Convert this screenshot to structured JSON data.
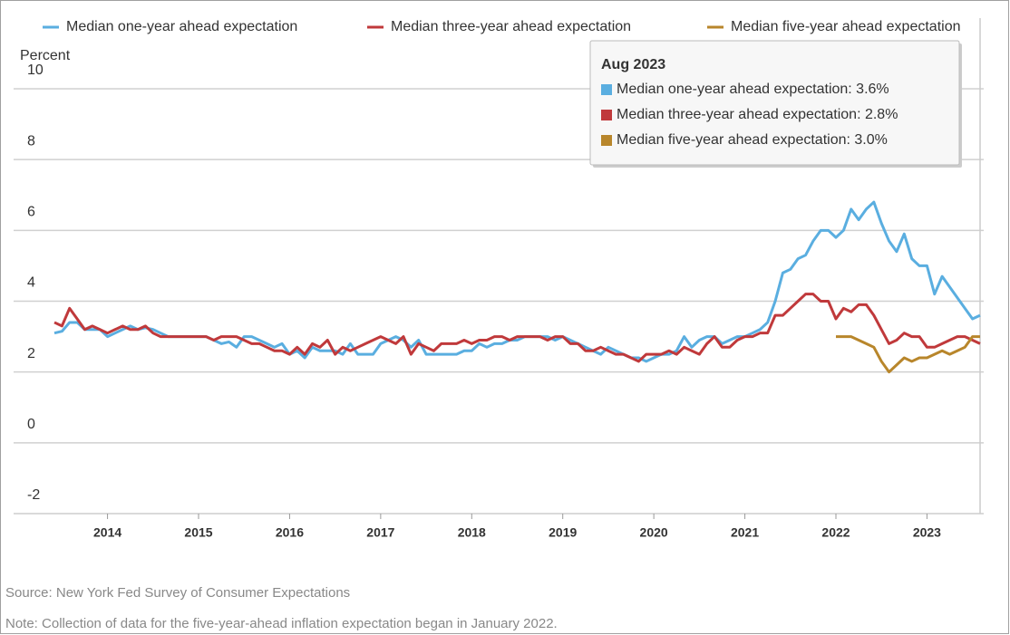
{
  "chart_data": {
    "type": "line",
    "y_label": "Percent",
    "x": [
      "Jun 2013",
      "Jul 2013",
      "Aug 2013",
      "Sep 2013",
      "Oct 2013",
      "Nov 2013",
      "Dec 2013",
      "Jan 2014",
      "Feb 2014",
      "Mar 2014",
      "Apr 2014",
      "May 2014",
      "Jun 2014",
      "Jul 2014",
      "Aug 2014",
      "Sep 2014",
      "Oct 2014",
      "Nov 2014",
      "Dec 2014",
      "Jan 2015",
      "Feb 2015",
      "Mar 2015",
      "Apr 2015",
      "May 2015",
      "Jun 2015",
      "Jul 2015",
      "Aug 2015",
      "Sep 2015",
      "Oct 2015",
      "Nov 2015",
      "Dec 2015",
      "Jan 2016",
      "Feb 2016",
      "Mar 2016",
      "Apr 2016",
      "May 2016",
      "Jun 2016",
      "Jul 2016",
      "Aug 2016",
      "Sep 2016",
      "Oct 2016",
      "Nov 2016",
      "Dec 2016",
      "Jan 2017",
      "Feb 2017",
      "Mar 2017",
      "Apr 2017",
      "May 2017",
      "Jun 2017",
      "Jul 2017",
      "Aug 2017",
      "Sep 2017",
      "Oct 2017",
      "Nov 2017",
      "Dec 2017",
      "Jan 2018",
      "Feb 2018",
      "Mar 2018",
      "Apr 2018",
      "May 2018",
      "Jun 2018",
      "Jul 2018",
      "Aug 2018",
      "Sep 2018",
      "Oct 2018",
      "Nov 2018",
      "Dec 2018",
      "Jan 2019",
      "Feb 2019",
      "Mar 2019",
      "Apr 2019",
      "May 2019",
      "Jun 2019",
      "Jul 2019",
      "Aug 2019",
      "Sep 2019",
      "Oct 2019",
      "Nov 2019",
      "Dec 2019",
      "Jan 2020",
      "Feb 2020",
      "Mar 2020",
      "Apr 2020",
      "May 2020",
      "Jun 2020",
      "Jul 2020",
      "Aug 2020",
      "Sep 2020",
      "Oct 2020",
      "Nov 2020",
      "Dec 2020",
      "Jan 2021",
      "Feb 2021",
      "Mar 2021",
      "Apr 2021",
      "May 2021",
      "Jun 2021",
      "Jul 2021",
      "Aug 2021",
      "Sep 2021",
      "Oct 2021",
      "Nov 2021",
      "Dec 2021",
      "Jan 2022",
      "Feb 2022",
      "Mar 2022",
      "Apr 2022",
      "May 2022",
      "Jun 2022",
      "Jul 2022",
      "Aug 2022",
      "Sep 2022",
      "Oct 2022",
      "Nov 2022",
      "Dec 2022",
      "Jan 2023",
      "Feb 2023",
      "Mar 2023",
      "Apr 2023",
      "May 2023",
      "Jun 2023",
      "Jul 2023",
      "Aug 2023"
    ],
    "series": [
      {
        "name": "Median one-year ahead expectation",
        "color": "#5aaee0",
        "values": [
          3.1,
          3.15,
          3.4,
          3.4,
          3.2,
          3.2,
          3.2,
          3.0,
          3.1,
          3.2,
          3.3,
          3.2,
          3.25,
          3.2,
          3.1,
          3.0,
          3.0,
          3.0,
          3.0,
          3.0,
          3.0,
          2.9,
          2.8,
          2.85,
          2.7,
          3.0,
          3.0,
          2.9,
          2.8,
          2.7,
          2.8,
          2.5,
          2.6,
          2.4,
          2.7,
          2.6,
          2.6,
          2.6,
          2.5,
          2.8,
          2.5,
          2.5,
          2.5,
          2.8,
          2.9,
          3.0,
          2.9,
          2.7,
          2.9,
          2.5,
          2.5,
          2.5,
          2.5,
          2.5,
          2.6,
          2.6,
          2.8,
          2.7,
          2.8,
          2.8,
          2.9,
          2.9,
          3.0,
          3.0,
          3.0,
          3.0,
          2.9,
          3.0,
          2.9,
          2.8,
          2.7,
          2.6,
          2.5,
          2.7,
          2.6,
          2.5,
          2.4,
          2.4,
          2.3,
          2.4,
          2.5,
          2.5,
          2.6,
          3.0,
          2.7,
          2.9,
          3.0,
          3.0,
          2.8,
          2.9,
          3.0,
          3.0,
          3.1,
          3.2,
          3.4,
          4.0,
          4.8,
          4.9,
          5.2,
          5.3,
          5.7,
          6.0,
          6.0,
          5.8,
          6.0,
          6.6,
          6.3,
          6.6,
          6.8,
          6.2,
          5.7,
          5.4,
          5.9,
          5.2,
          5.0,
          5.0,
          4.2,
          4.7,
          4.4,
          4.1,
          3.8,
          3.5,
          3.6
        ]
      },
      {
        "name": "Median three-year ahead expectation",
        "color": "#c0393b",
        "values": [
          3.4,
          3.3,
          3.8,
          3.5,
          3.2,
          3.3,
          3.2,
          3.1,
          3.2,
          3.3,
          3.2,
          3.2,
          3.3,
          3.1,
          3.0,
          3.0,
          3.0,
          3.0,
          3.0,
          3.0,
          3.0,
          2.9,
          3.0,
          3.0,
          3.0,
          2.9,
          2.8,
          2.8,
          2.7,
          2.6,
          2.6,
          2.5,
          2.7,
          2.5,
          2.8,
          2.7,
          2.9,
          2.5,
          2.7,
          2.6,
          2.7,
          2.8,
          2.9,
          3.0,
          2.9,
          2.8,
          3.0,
          2.5,
          2.8,
          2.7,
          2.6,
          2.8,
          2.8,
          2.8,
          2.9,
          2.8,
          2.9,
          2.9,
          3.0,
          3.0,
          2.9,
          3.0,
          3.0,
          3.0,
          3.0,
          2.9,
          3.0,
          3.0,
          2.8,
          2.8,
          2.6,
          2.6,
          2.7,
          2.6,
          2.5,
          2.5,
          2.4,
          2.3,
          2.5,
          2.5,
          2.5,
          2.6,
          2.5,
          2.7,
          2.6,
          2.5,
          2.8,
          3.0,
          2.7,
          2.7,
          2.9,
          3.0,
          3.0,
          3.1,
          3.1,
          3.6,
          3.6,
          3.8,
          4.0,
          4.2,
          4.2,
          4.0,
          4.0,
          3.5,
          3.8,
          3.7,
          3.9,
          3.9,
          3.6,
          3.2,
          2.8,
          2.9,
          3.1,
          3.0,
          3.0,
          2.7,
          2.7,
          2.8,
          2.9,
          3.0,
          3.0,
          2.9,
          2.8
        ]
      },
      {
        "name": "Median five-year ahead expectation",
        "color": "#b8862b",
        "values": [
          null,
          null,
          null,
          null,
          null,
          null,
          null,
          null,
          null,
          null,
          null,
          null,
          null,
          null,
          null,
          null,
          null,
          null,
          null,
          null,
          null,
          null,
          null,
          null,
          null,
          null,
          null,
          null,
          null,
          null,
          null,
          null,
          null,
          null,
          null,
          null,
          null,
          null,
          null,
          null,
          null,
          null,
          null,
          null,
          null,
          null,
          null,
          null,
          null,
          null,
          null,
          null,
          null,
          null,
          null,
          null,
          null,
          null,
          null,
          null,
          null,
          null,
          null,
          null,
          null,
          null,
          null,
          null,
          null,
          null,
          null,
          null,
          null,
          null,
          null,
          null,
          null,
          null,
          null,
          null,
          null,
          null,
          null,
          null,
          null,
          null,
          null,
          null,
          null,
          null,
          null,
          null,
          null,
          null,
          null,
          null,
          null,
          null,
          null,
          null,
          null,
          null,
          null,
          3.0,
          3.0,
          3.0,
          2.9,
          2.8,
          2.7,
          2.3,
          2.0,
          2.2,
          2.4,
          2.3,
          2.4,
          2.4,
          2.5,
          2.6,
          2.5,
          2.6,
          2.7,
          3.0,
          3.0
        ]
      }
    ],
    "ylim": [
      -2,
      10
    ],
    "yticks": [
      -2,
      0,
      2,
      4,
      6,
      8,
      10
    ],
    "grid": true,
    "xticks": [
      {
        "value": "Jan 2014",
        "label": "2014"
      },
      {
        "value": "Jan 2015",
        "label": "2015"
      },
      {
        "value": "Jan 2016",
        "label": "2016"
      },
      {
        "value": "Jan 2017",
        "label": "2017"
      },
      {
        "value": "Jan 2018",
        "label": "2018"
      },
      {
        "value": "Jan 2019",
        "label": "2019"
      },
      {
        "value": "Jan 2020",
        "label": "2020"
      },
      {
        "value": "Jan 2021",
        "label": "2021"
      },
      {
        "value": "Jan 2022",
        "label": "2022"
      },
      {
        "value": "Jan 2023",
        "label": "2023"
      }
    ],
    "legend": "top",
    "tooltip": {
      "title": "Aug 2023",
      "rows": [
        "Median one-year ahead expectation: 3.6%",
        "Median three-year ahead expectation: 2.8%",
        "Median five-year ahead expectation: 3.0%"
      ]
    },
    "source": "Source: New York Fed Survey of Consumer Expectations",
    "note": "Note: Collection of data for the five-year-ahead inflation expectation began in January 2022."
  }
}
